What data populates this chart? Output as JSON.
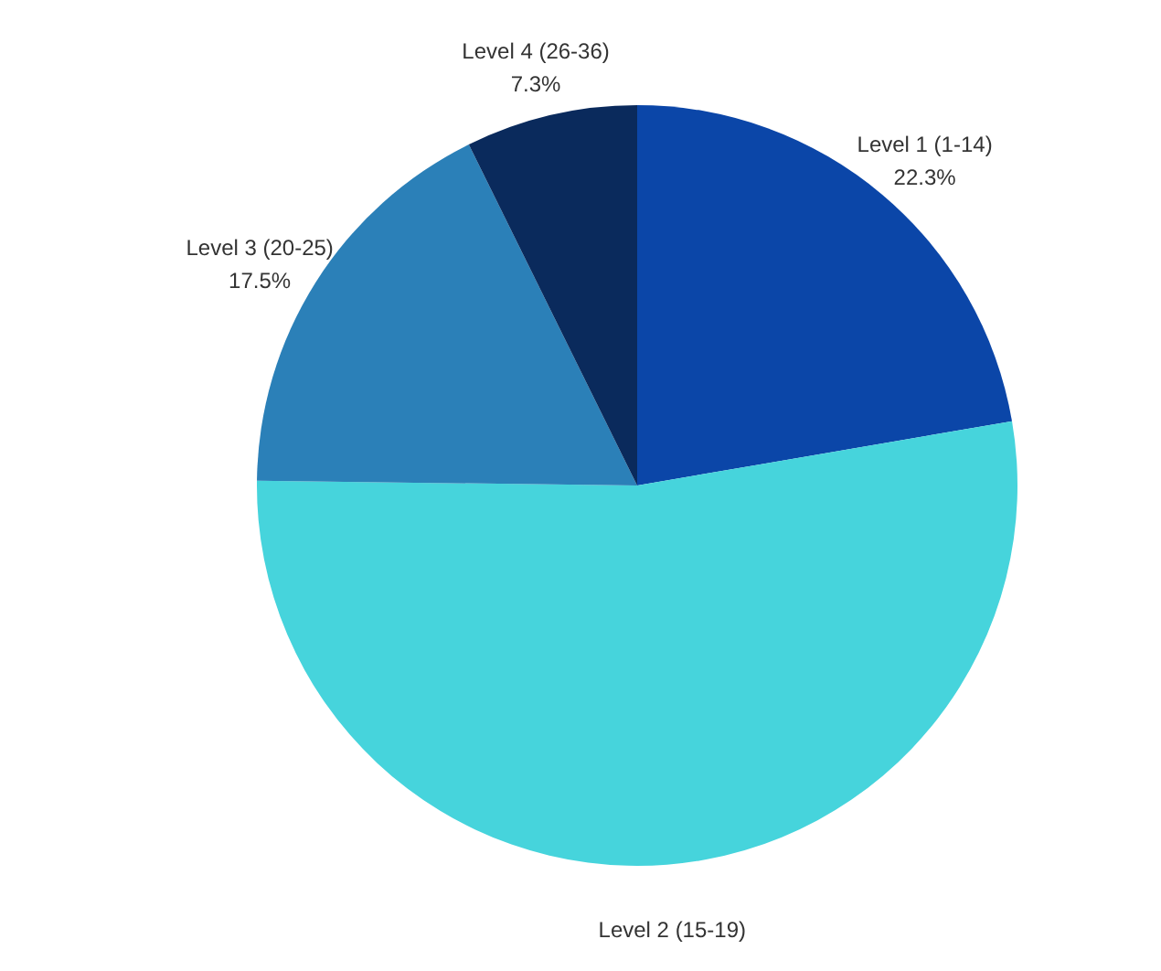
{
  "chart_data": {
    "type": "pie",
    "categories": [
      "Level 1 (1-14)",
      "Level 2 (15-19)",
      "Level 3 (20-25)",
      "Level 4 (26-36)"
    ],
    "values": [
      22.3,
      52.9,
      17.5,
      7.3
    ],
    "value_labels": [
      "22.3%",
      null,
      "17.5%",
      "7.3%"
    ],
    "colors": [
      "#0b46a8",
      "#46d4dc",
      "#2b80b8",
      "#0a2a5c"
    ]
  }
}
